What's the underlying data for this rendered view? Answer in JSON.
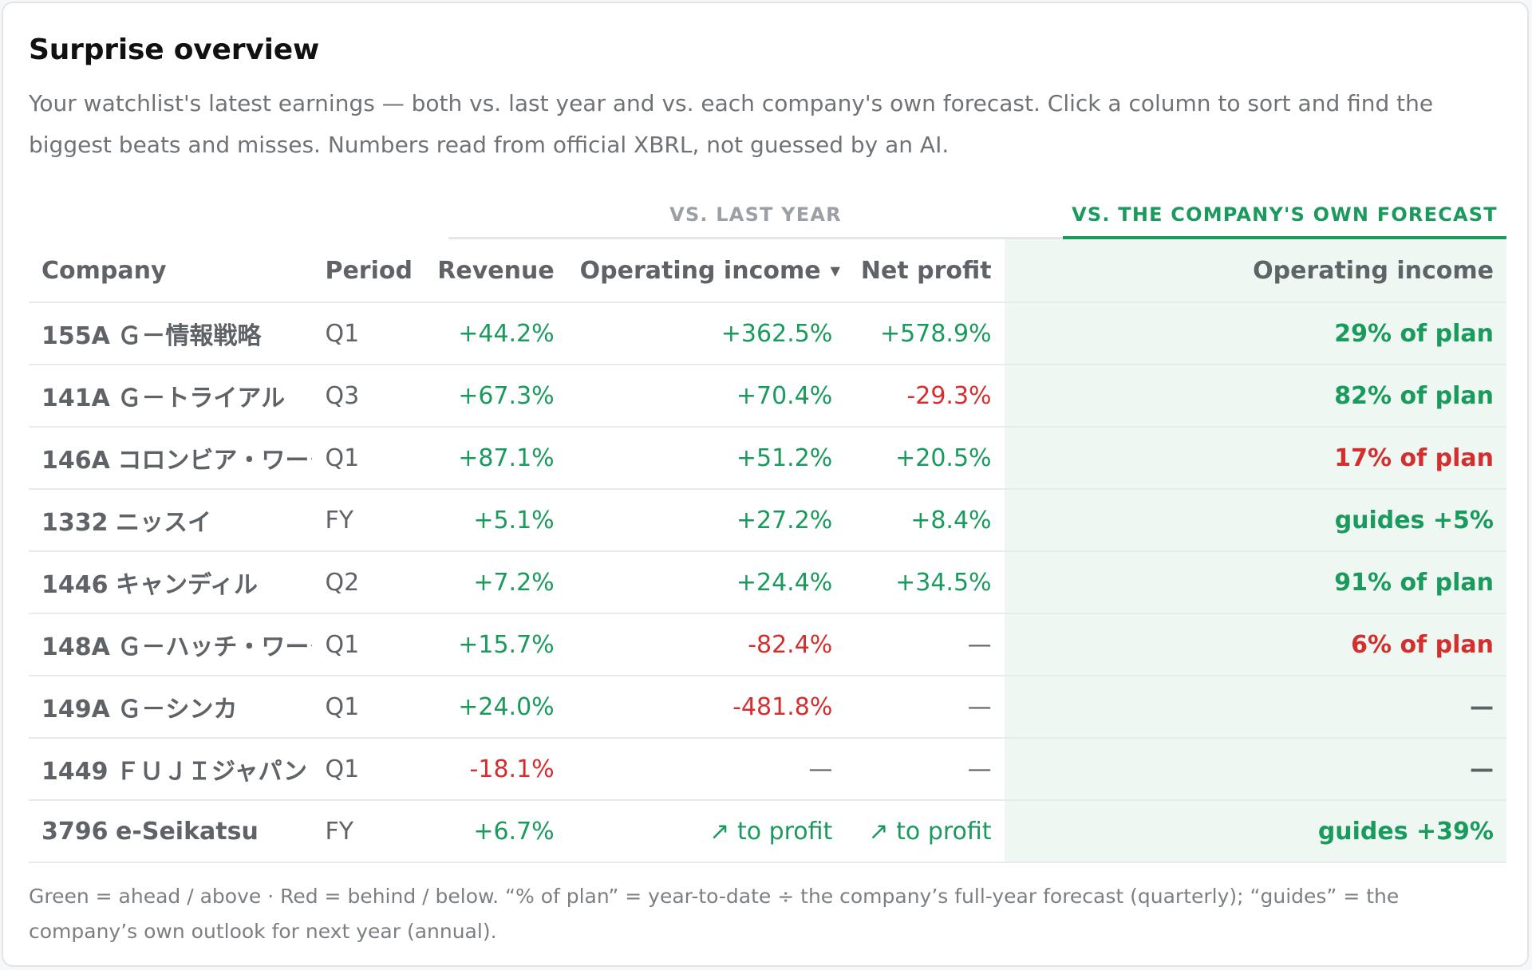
{
  "panel": {
    "title": "Surprise overview",
    "subtitle": "Your watchlist's latest earnings — both vs. last year and vs. each company's own forecast. Click a column to sort and find the biggest beats and misses. Numbers read from official XBRL, not guessed by an AI."
  },
  "table": {
    "group_headers": {
      "last_year": "VS. LAST YEAR",
      "forecast": "VS. THE COMPANY'S OWN FORECAST"
    },
    "columns": {
      "company": "Company",
      "period": "Period",
      "revenue": "Revenue",
      "operating_income": "Operating income",
      "net_profit": "Net profit",
      "forecast_operating_income": "Operating income"
    },
    "sort": {
      "column": "operating_income",
      "direction": "descending",
      "icon": "sort-desc-icon",
      "glyph": "▼"
    },
    "rows": [
      {
        "code": "155A",
        "name": "Ｇ－情報戦略",
        "period": "Q1",
        "revenue": "+44.2%",
        "operating_income": "+362.5%",
        "net_profit": "+578.9%",
        "forecast": "29% of plan"
      },
      {
        "code": "141A",
        "name": "Ｇ－トライアル",
        "period": "Q3",
        "revenue": "+67.3%",
        "operating_income": "+70.4%",
        "net_profit": "-29.3%",
        "forecast": "82% of plan"
      },
      {
        "code": "146A",
        "name": "コロンビア・ワークス",
        "period": "Q1",
        "revenue": "+87.1%",
        "operating_income": "+51.2%",
        "net_profit": "+20.5%",
        "forecast": "17% of plan"
      },
      {
        "code": "1332",
        "name": "ニッスイ",
        "period": "FY",
        "revenue": "+5.1%",
        "operating_income": "+27.2%",
        "net_profit": "+8.4%",
        "forecast": "guides +5%"
      },
      {
        "code": "1446",
        "name": "キャンディル",
        "period": "Q2",
        "revenue": "+7.2%",
        "operating_income": "+24.4%",
        "net_profit": "+34.5%",
        "forecast": "91% of plan"
      },
      {
        "code": "148A",
        "name": "Ｇ－ハッチ・ワーク",
        "period": "Q1",
        "revenue": "+15.7%",
        "operating_income": "-82.4%",
        "net_profit": "—",
        "forecast": "6% of plan"
      },
      {
        "code": "149A",
        "name": "Ｇ－シンカ",
        "period": "Q1",
        "revenue": "+24.0%",
        "operating_income": "-481.8%",
        "net_profit": "—",
        "forecast": "—"
      },
      {
        "code": "1449",
        "name": "ＦＵＪＩジャパン",
        "period": "Q1",
        "revenue": "-18.1%",
        "operating_income": "—",
        "net_profit": "—",
        "forecast": "—"
      },
      {
        "code": "3796",
        "name": "e-Seikatsu",
        "period": "FY",
        "revenue": "+6.7%",
        "operating_income": "↗ to profit",
        "net_profit": "↗ to profit",
        "forecast": "guides +39%"
      }
    ],
    "cell_tones": [
      [
        "pos",
        "pos",
        "pos",
        "pos"
      ],
      [
        "pos",
        "pos",
        "neg",
        "pos"
      ],
      [
        "pos",
        "pos",
        "pos",
        "neg"
      ],
      [
        "pos",
        "pos",
        "pos",
        "pos"
      ],
      [
        "pos",
        "pos",
        "pos",
        "pos"
      ],
      [
        "pos",
        "neg",
        "dash",
        "neg"
      ],
      [
        "pos",
        "neg",
        "dash",
        "dash"
      ],
      [
        "neg",
        "dash",
        "dash",
        "dash"
      ],
      [
        "pos",
        "pos",
        "pos",
        "pos"
      ]
    ]
  },
  "legend": {
    "footnote": "Green = ahead / above · Red = behind / below. “% of plan” = year-to-date ÷ the company’s full-year forecast (quarterly); “guides” = the company’s own outlook for next year (annual)."
  },
  "colors": {
    "positive": "#1a9a5c",
    "negative": "#d32f2f",
    "forecast_highlight_bg": "#eef7f1",
    "muted_text": "#6f7378"
  }
}
